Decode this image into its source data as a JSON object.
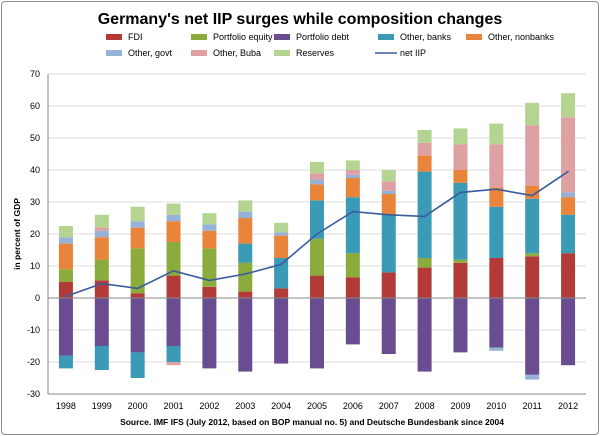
{
  "chart_data": {
    "type": "bar",
    "title": "Germany's net IIP surges while composition changes",
    "ylabel": "in percent of GDP",
    "xlabel": "",
    "source": "Source. IMF IFS (July 2012, based on BOP manual no. 5) and Deutsche Bundesbank since 2004",
    "ylim": [
      -30,
      70
    ],
    "yticks": [
      -30,
      -20,
      -10,
      0,
      10,
      20,
      30,
      40,
      50,
      60,
      70
    ],
    "grid": true,
    "legend_position": "top",
    "categories": [
      "1998",
      "1999",
      "2000",
      "2001",
      "2002",
      "2003",
      "2004",
      "2005",
      "2006",
      "2007",
      "2008",
      "2009",
      "2010",
      "2011",
      "2012"
    ],
    "series": [
      {
        "name": "FDI",
        "color": "#b23b37",
        "values": [
          5,
          5.5,
          1.5,
          7,
          3.5,
          2,
          3,
          7,
          6.5,
          8,
          9.5,
          11,
          12.5,
          13,
          14
        ]
      },
      {
        "name": "Portfolio equity",
        "color": "#8bac3d",
        "values": [
          4,
          6.5,
          14,
          10.5,
          12,
          9,
          0,
          11.5,
          7.5,
          0,
          3,
          1,
          0,
          1,
          0
        ]
      },
      {
        "name": "Portfolio debt",
        "color": "#6a4d91",
        "values": [
          -18,
          -15,
          -17,
          -15,
          -22,
          -23,
          -20.5,
          -22,
          -14.5,
          -17.5,
          -23,
          -17,
          -15.5,
          -24,
          -21
        ]
      },
      {
        "name": "Other, banks",
        "color": "#3b9ab5",
        "values": [
          -4,
          -7.5,
          -8,
          -5,
          0,
          6,
          9.5,
          12,
          17.5,
          18,
          27,
          24,
          16,
          17,
          12
        ]
      },
      {
        "name": "Other, nonbanks",
        "color": "#e8853a",
        "values": [
          8,
          7,
          6.5,
          6.5,
          5.5,
          8,
          7,
          5,
          6,
          6.5,
          5,
          4,
          6,
          4,
          5.5
        ]
      },
      {
        "name": "Other, govt",
        "color": "#96b2d9",
        "values": [
          2,
          2,
          2,
          2,
          2,
          2,
          1,
          1.5,
          1,
          1,
          0,
          0,
          -1,
          -1.5,
          1.5
        ]
      },
      {
        "name": "Other, Buba",
        "color": "#dfa0a3",
        "values": [
          0,
          1,
          0,
          -1,
          0,
          0,
          0,
          2,
          1.5,
          3,
          4,
          8,
          13.5,
          19,
          23.5
        ]
      },
      {
        "name": "Reserves",
        "color": "#b5d491",
        "values": [
          3.5,
          4,
          4.5,
          3.5,
          3.5,
          3.5,
          3,
          3.5,
          3,
          3.5,
          4,
          5,
          6.5,
          7,
          7.5
        ]
      }
    ],
    "line": {
      "name": "net IIP",
      "color": "#3b5b9f",
      "values": [
        0.5,
        4.5,
        3,
        8.5,
        5.5,
        7.5,
        10.5,
        20,
        27,
        26,
        25.5,
        33,
        34,
        32,
        39.5
      ]
    }
  }
}
